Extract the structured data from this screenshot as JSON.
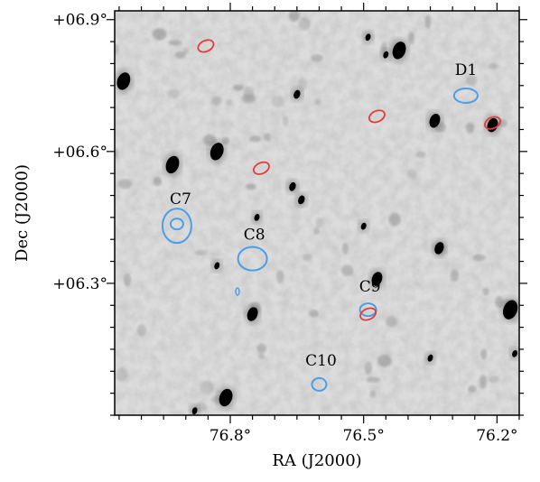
{
  "chart_data": {
    "type": "sky-map",
    "xlabel": "RA (J2000)",
    "ylabel": "Dec (J2000)",
    "xlim": [
      77.06,
      76.15
    ],
    "ylim": [
      6.0,
      6.92
    ],
    "xticks": [
      {
        "value": 76.8,
        "label": "76.8°"
      },
      {
        "value": 76.5,
        "label": "76.5°"
      },
      {
        "value": 76.2,
        "label": "76.2°"
      }
    ],
    "yticks": [
      {
        "value": 6.9,
        "label": "+06.9°"
      },
      {
        "value": 6.6,
        "label": "+06.6°"
      },
      {
        "value": 6.3,
        "label": "+06.3°"
      }
    ],
    "colors": {
      "blue_contour": "#4a9ee8",
      "red_contour": "#e23b3b",
      "background": "#dcdcdc",
      "star": "#000000"
    },
    "blue_sources": [
      {
        "label": "D1",
        "ra": 76.27,
        "dec": 6.727
      },
      {
        "label": "C7",
        "ra": 76.92,
        "dec": 6.431
      },
      {
        "label": "C8",
        "ra": 76.75,
        "dec": 6.356
      },
      {
        "label": "C9",
        "ra": 76.49,
        "dec": 6.24
      },
      {
        "label": "C10",
        "ra": 76.6,
        "dec": 6.07
      }
    ],
    "red_sources": [
      {
        "ra": 76.855,
        "dec": 6.84
      },
      {
        "ra": 76.47,
        "dec": 6.68
      },
      {
        "ra": 76.73,
        "dec": 6.562
      },
      {
        "ra": 76.21,
        "dec": 6.665
      },
      {
        "ra": 76.49,
        "dec": 6.23
      }
    ],
    "stars": [
      {
        "ra": 77.04,
        "dec": 6.76,
        "r": 1.0
      },
      {
        "ra": 76.93,
        "dec": 6.57,
        "r": 1.0
      },
      {
        "ra": 76.83,
        "dec": 6.6,
        "r": 1.0
      },
      {
        "ra": 76.42,
        "dec": 6.83,
        "r": 1.0
      },
      {
        "ra": 76.34,
        "dec": 6.67,
        "r": 0.8
      },
      {
        "ra": 76.21,
        "dec": 6.66,
        "r": 0.8
      },
      {
        "ra": 76.47,
        "dec": 6.31,
        "r": 0.8
      },
      {
        "ra": 76.17,
        "dec": 6.24,
        "r": 1.1
      },
      {
        "ra": 76.75,
        "dec": 6.23,
        "r": 0.8
      },
      {
        "ra": 76.81,
        "dec": 6.04,
        "r": 1.0
      },
      {
        "ra": 76.33,
        "dec": 6.38,
        "r": 0.7
      },
      {
        "ra": 76.65,
        "dec": 6.73,
        "r": 0.5
      },
      {
        "ra": 76.66,
        "dec": 6.52,
        "r": 0.5
      },
      {
        "ra": 76.64,
        "dec": 6.49,
        "r": 0.5
      },
      {
        "ra": 76.56,
        "dec": 5.98,
        "r": 0.5
      },
      {
        "ra": 76.45,
        "dec": 6.82,
        "r": 0.4
      },
      {
        "ra": 76.49,
        "dec": 6.86,
        "r": 0.4
      },
      {
        "ra": 76.74,
        "dec": 6.45,
        "r": 0.4
      },
      {
        "ra": 76.83,
        "dec": 6.34,
        "r": 0.4
      },
      {
        "ra": 76.88,
        "dec": 6.01,
        "r": 0.4
      },
      {
        "ra": 76.5,
        "dec": 6.43,
        "r": 0.4
      },
      {
        "ra": 76.16,
        "dec": 6.14,
        "r": 0.4
      },
      {
        "ra": 76.35,
        "dec": 6.13,
        "r": 0.4
      }
    ]
  }
}
